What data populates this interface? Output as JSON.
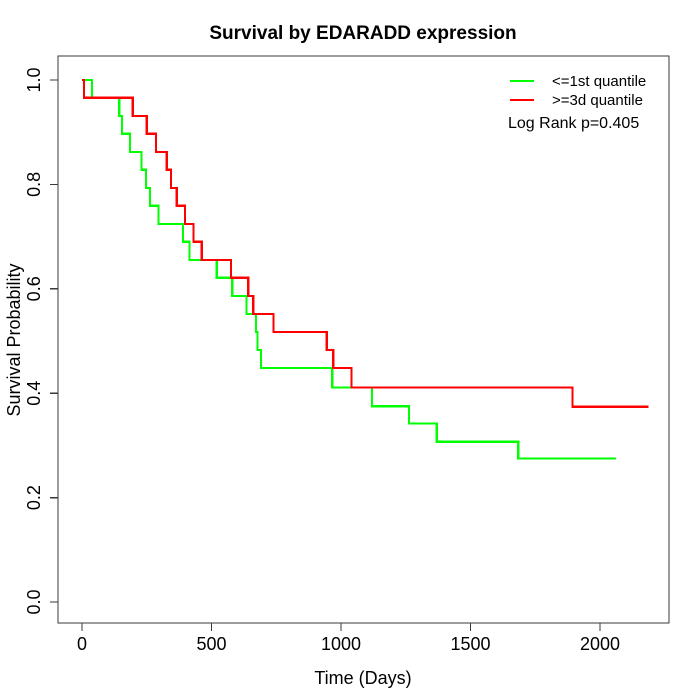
{
  "title": "Survival by EDARADD expression",
  "axes": {
    "x_label": "Time (Days)",
    "y_label": "Survival Probability",
    "x_ticks": [
      "0",
      "500",
      "1000",
      "1500",
      "2000"
    ],
    "y_ticks": [
      "0.0",
      "0.2",
      "0.4",
      "0.6",
      "0.8",
      "1.0"
    ]
  },
  "legend": {
    "items": [
      {
        "label": "<=1st quantile",
        "color": "#00ff00"
      },
      {
        "label": ">=3d quantile",
        "color": "#ff0000"
      }
    ],
    "log_rank_label": "Log Rank p=0.405"
  },
  "chart_data": {
    "type": "line",
    "subtype": "kaplan-meier-step",
    "title": "Survival by EDARADD expression",
    "xlabel": "Time (Days)",
    "ylabel": "Survival Probability",
    "xlim": [
      0,
      2200
    ],
    "ylim": [
      0.0,
      1.0
    ],
    "x_tick_values": [
      0,
      500,
      1000,
      1500,
      2000
    ],
    "y_tick_values": [
      0.0,
      0.2,
      0.4,
      0.6,
      0.8,
      1.0
    ],
    "grid": false,
    "legend_position": "top-right",
    "annotation": "Log Rank p=0.405",
    "series": [
      {
        "name": "<=1st quantile",
        "color": "#00ff00",
        "points": [
          [
            0,
            1.0
          ],
          [
            39,
            0.966
          ],
          [
            144,
            0.931
          ],
          [
            155,
            0.897
          ],
          [
            185,
            0.862
          ],
          [
            230,
            0.828
          ],
          [
            247,
            0.793
          ],
          [
            262,
            0.759
          ],
          [
            295,
            0.724
          ],
          [
            390,
            0.69
          ],
          [
            415,
            0.655
          ],
          [
            520,
            0.621
          ],
          [
            580,
            0.586
          ],
          [
            635,
            0.552
          ],
          [
            672,
            0.517
          ],
          [
            678,
            0.483
          ],
          [
            691,
            0.448
          ],
          [
            966,
            0.411
          ],
          [
            1120,
            0.375
          ],
          [
            1262,
            0.342
          ],
          [
            1370,
            0.307
          ],
          [
            1684,
            0.275
          ],
          [
            2062,
            0.275
          ]
        ]
      },
      {
        "name": ">=3d quantile",
        "color": "#ff0000",
        "points": [
          [
            0,
            1.0
          ],
          [
            8,
            0.966
          ],
          [
            196,
            0.931
          ],
          [
            250,
            0.897
          ],
          [
            286,
            0.862
          ],
          [
            327,
            0.828
          ],
          [
            344,
            0.793
          ],
          [
            366,
            0.759
          ],
          [
            398,
            0.724
          ],
          [
            430,
            0.69
          ],
          [
            462,
            0.655
          ],
          [
            575,
            0.621
          ],
          [
            642,
            0.586
          ],
          [
            661,
            0.552
          ],
          [
            739,
            0.517
          ],
          [
            945,
            0.483
          ],
          [
            970,
            0.448
          ],
          [
            1041,
            0.411
          ],
          [
            1894,
            0.374
          ],
          [
            2187,
            0.374
          ]
        ]
      }
    ]
  }
}
